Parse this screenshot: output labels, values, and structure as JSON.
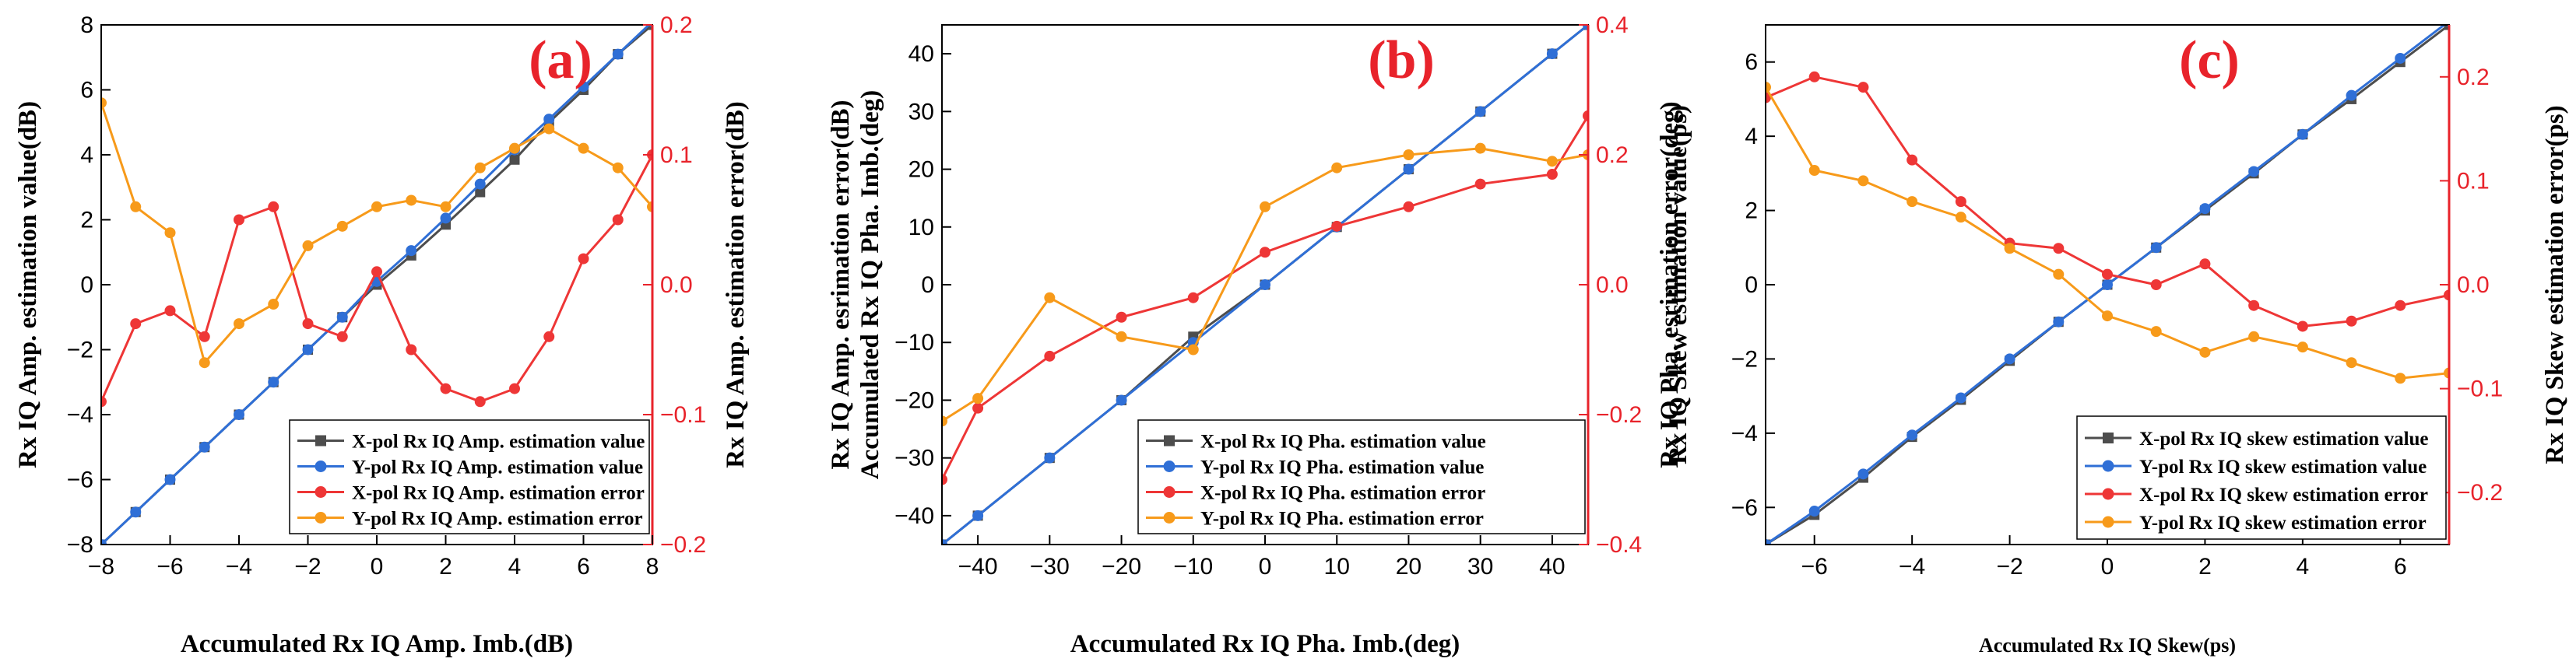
{
  "colors": {
    "x_val": "#4d4d4d",
    "y_val": "#2f6fd6",
    "x_err": "#ee3636",
    "y_err": "#f79a1a",
    "right_axis": "#e8232b",
    "panel_label": "#e8232b"
  },
  "chart_data": [
    {
      "type": "line",
      "panel": "(a)",
      "xlabel": "Accumulated Rx IQ Amp. Imb.(dB)",
      "ylabel_left": "Rx IQ Amp. estimation value(dB)",
      "ylabel_right": "Rx IQ Amp. estimation error(dB)",
      "xlim": [
        -8,
        8
      ],
      "ylim_left": [
        -8,
        8
      ],
      "ylim_right": [
        -0.2,
        0.2
      ],
      "xticks": [
        -8,
        -6,
        -4,
        -2,
        0,
        2,
        4,
        6,
        8
      ],
      "xtick_labels": [
        "−8",
        "−6",
        "−4",
        "−2",
        "0",
        "2",
        "4",
        "6",
        "8"
      ],
      "yticks_left": [
        -8,
        -6,
        -4,
        -2,
        0,
        2,
        4,
        6,
        8
      ],
      "ytick_labels_left": [
        "−8",
        "−6",
        "−4",
        "−2",
        "0",
        "2",
        "4",
        "6",
        "8"
      ],
      "yticks_right": [
        -0.2,
        -0.1,
        0,
        0.1,
        0.2
      ],
      "ytick_labels_right": [
        "−0.2",
        "−0.1",
        "0.0",
        "0.1",
        "0.2"
      ],
      "series": [
        {
          "name": "X-pol Rx IQ Amp. estimation value",
          "axis": "left",
          "marker": "square",
          "color_key": "x_val",
          "x": [
            -8,
            -7,
            -6,
            -5,
            -4,
            -3,
            -2,
            -1,
            0,
            1,
            2,
            3,
            4,
            5,
            6,
            7,
            8
          ],
          "y": [
            -8,
            -7,
            -6,
            -5,
            -4,
            -3,
            -2,
            -1,
            0,
            0.9,
            1.85,
            2.85,
            3.85,
            5.0,
            6.0,
            7.1,
            8.0
          ]
        },
        {
          "name": "Y-pol Rx IQ Amp. estimation value",
          "axis": "left",
          "marker": "circle",
          "color_key": "y_val",
          "x": [
            -8,
            -7,
            -6,
            -5,
            -4,
            -3,
            -2,
            -1,
            0,
            1,
            2,
            3,
            4,
            5,
            6,
            7,
            8
          ],
          "y": [
            -8,
            -7,
            -6,
            -5,
            -4,
            -3,
            -2,
            -1,
            0.1,
            1.05,
            2.05,
            3.1,
            4.15,
            5.1,
            6.1,
            7.1,
            8.1
          ]
        },
        {
          "name": "X-pol Rx IQ Amp. estimation error",
          "axis": "right",
          "marker": "circle",
          "color_key": "x_err",
          "x": [
            -8,
            -7,
            -6,
            -5,
            -4,
            -3,
            -2,
            -1,
            0,
            1,
            2,
            3,
            4,
            5,
            6,
            7,
            8
          ],
          "y": [
            -0.09,
            -0.03,
            -0.02,
            -0.04,
            0.05,
            0.06,
            -0.03,
            -0.04,
            0.01,
            -0.05,
            -0.08,
            -0.09,
            -0.08,
            -0.04,
            0.02,
            0.05,
            0.1
          ]
        },
        {
          "name": "Y-pol Rx IQ Amp. estimation error",
          "axis": "right",
          "marker": "circle",
          "color_key": "y_err",
          "x": [
            -8,
            -7,
            -6,
            -5,
            -4,
            -3,
            -2,
            -1,
            0,
            1,
            2,
            3,
            4,
            5,
            6,
            7,
            8
          ],
          "y": [
            0.14,
            0.06,
            0.04,
            -0.06,
            -0.03,
            -0.015,
            0.03,
            0.045,
            0.06,
            0.065,
            0.06,
            0.09,
            0.105,
            0.12,
            0.105,
            0.09,
            0.06
          ]
        }
      ],
      "legend_position": "bottom-right"
    },
    {
      "type": "line",
      "panel": "(b)",
      "xlabel": "Accumulated Rx IQ Pha. Imb.(deg)",
      "ylabel_left": "Rx IQ Amp. esrimation error(dB)",
      "ylabel_left_2": "Accumulated Rx IQ Pha. Imb.(deg)",
      "ylabel_right": "Rx IQ Pha. esrimation error(deg)",
      "xlim": [
        -45,
        45
      ],
      "ylim_left": [
        -45,
        45
      ],
      "ylim_right": [
        -0.4,
        0.4
      ],
      "xticks": [
        -40,
        -30,
        -20,
        -10,
        0,
        10,
        20,
        30,
        40
      ],
      "xtick_labels": [
        "−40",
        "−30",
        "−20",
        "−10",
        "0",
        "10",
        "20",
        "30",
        "40"
      ],
      "yticks_left": [
        -40,
        -30,
        -20,
        -10,
        0,
        10,
        20,
        30,
        40
      ],
      "ytick_labels_left": [
        "−40",
        "−30",
        "−20",
        "−10",
        "0",
        "10",
        "20",
        "30",
        "40"
      ],
      "yticks_right": [
        -0.4,
        -0.2,
        0,
        0.2,
        0.4
      ],
      "ytick_labels_right": [
        "−0.4",
        "−0.2",
        "0.0",
        "0.2",
        "0.4"
      ],
      "series": [
        {
          "name": "X-pol Rx IQ Pha. estimation value",
          "axis": "left",
          "marker": "square",
          "color_key": "x_val",
          "x": [
            -45,
            -40,
            -30,
            -20,
            -10,
            0,
            10,
            20,
            30,
            40,
            45
          ],
          "y": [
            -45,
            -40,
            -30,
            -20,
            -9,
            0,
            10,
            20,
            30,
            40,
            45
          ]
        },
        {
          "name": "Y-pol Rx IQ Pha. estimation value",
          "axis": "left",
          "marker": "circle",
          "color_key": "y_val",
          "x": [
            -45,
            -40,
            -30,
            -20,
            -10,
            0,
            10,
            20,
            30,
            40,
            45
          ],
          "y": [
            -45,
            -40,
            -30,
            -20,
            -10,
            0,
            10,
            20,
            30,
            40,
            45
          ]
        },
        {
          "name": "X-pol Rx IQ Pha. estimation error",
          "axis": "right",
          "marker": "circle",
          "color_key": "x_err",
          "x": [
            -45,
            -40,
            -30,
            -20,
            -10,
            0,
            10,
            20,
            30,
            40,
            45
          ],
          "y": [
            -0.3,
            -0.19,
            -0.11,
            -0.05,
            -0.02,
            0.05,
            0.09,
            0.12,
            0.155,
            0.17,
            0.26
          ]
        },
        {
          "name": "Y-pol Rx IQ Pha. estimation error",
          "axis": "right",
          "marker": "circle",
          "color_key": "y_err",
          "x": [
            -45,
            -40,
            -30,
            -20,
            -10,
            0,
            10,
            20,
            30,
            40,
            45
          ],
          "y": [
            -0.21,
            -0.175,
            -0.02,
            -0.08,
            -0.1,
            0.12,
            0.18,
            0.2,
            0.21,
            0.19,
            0.2
          ]
        }
      ],
      "legend_position": "bottom-right"
    },
    {
      "type": "line",
      "panel": "(c)",
      "xlabel": "Accumulated Rx IQ Skew(ps)",
      "ylabel_left": "Rx IQ Skew estimation value(ps)",
      "ylabel_right": "Rx IQ Skew estimation error(ps)",
      "xlim": [
        -7,
        7
      ],
      "ylim_left": [
        -7,
        7
      ],
      "ylim_right": [
        -0.25,
        0.25
      ],
      "xticks": [
        -6,
        -4,
        -2,
        0,
        2,
        4,
        6
      ],
      "xtick_labels": [
        "−6",
        "−4",
        "−2",
        "0",
        "2",
        "4",
        "6"
      ],
      "yticks_left": [
        -6,
        -4,
        -2,
        0,
        2,
        4,
        6
      ],
      "ytick_labels_left": [
        "−6",
        "−4",
        "−2",
        "0",
        "2",
        "4",
        "6"
      ],
      "yticks_right": [
        -0.2,
        -0.1,
        0,
        0.1,
        0.2
      ],
      "ytick_labels_right": [
        "−0.2",
        "−0.1",
        "0.0",
        "0.1",
        "0.2"
      ],
      "series": [
        {
          "name": "X-pol Rx IQ skew estimation value",
          "axis": "left",
          "marker": "square",
          "color_key": "x_val",
          "x": [
            -7,
            -6,
            -5,
            -4,
            -3,
            -2,
            -1,
            0,
            1,
            2,
            3,
            4,
            5,
            6,
            7
          ],
          "y": [
            -7,
            -6.2,
            -5.2,
            -4.1,
            -3.1,
            -2.05,
            -1.0,
            0.0,
            1.0,
            2.0,
            3.0,
            4.05,
            5.0,
            6.0,
            7.0
          ]
        },
        {
          "name": "Y-pol Rx IQ skew estimation value",
          "axis": "left",
          "marker": "circle",
          "color_key": "y_val",
          "x": [
            -7,
            -6,
            -5,
            -4,
            -3,
            -2,
            -1,
            0,
            1,
            2,
            3,
            4,
            5,
            6,
            7
          ],
          "y": [
            -7,
            -6.1,
            -5.1,
            -4.05,
            -3.05,
            -2.0,
            -1.0,
            0.0,
            1.0,
            2.05,
            3.05,
            4.05,
            5.1,
            6.1,
            7.1
          ]
        },
        {
          "name": "X-pol Rx IQ skew estimation error",
          "axis": "right",
          "marker": "circle",
          "color_key": "x_err",
          "x": [
            -7,
            -6,
            -5,
            -4,
            -3,
            -2,
            -1,
            0,
            1,
            2,
            3,
            4,
            5,
            6,
            7
          ],
          "y": [
            0.18,
            0.2,
            0.19,
            0.12,
            0.08,
            0.04,
            0.035,
            0.01,
            0.0,
            0.02,
            -0.02,
            -0.04,
            -0.035,
            -0.02,
            -0.01
          ]
        },
        {
          "name": "Y-pol Rx IQ skew estimation error",
          "axis": "right",
          "marker": "circle",
          "color_key": "y_err",
          "x": [
            -7,
            -6,
            -5,
            -4,
            -3,
            -2,
            -1,
            0,
            1,
            2,
            3,
            4,
            5,
            6,
            7
          ],
          "y": [
            0.19,
            0.11,
            0.1,
            0.08,
            0.065,
            0.035,
            0.01,
            -0.03,
            -0.045,
            -0.065,
            -0.05,
            -0.06,
            -0.075,
            -0.09,
            -0.085
          ]
        }
      ],
      "legend_position": "bottom-right"
    }
  ]
}
